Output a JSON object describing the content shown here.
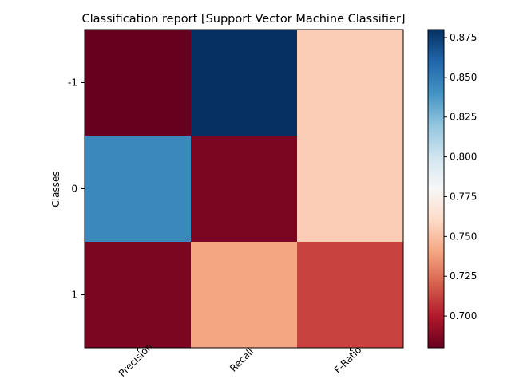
{
  "chart_data": {
    "type": "heatmap",
    "title": "Classification report  [Support Vector Machine Classifier]",
    "xlabel": "",
    "ylabel": "Classes",
    "x_categories": [
      "Precision",
      "Recall",
      "F-Ratio"
    ],
    "y_categories": [
      "-1",
      "0",
      "1"
    ],
    "values": [
      [
        0.68,
        0.88,
        0.755
      ],
      [
        0.845,
        0.685,
        0.755
      ],
      [
        0.685,
        0.74,
        0.712
      ]
    ],
    "colorbar": {
      "min": 0.68,
      "max": 0.88,
      "colormap": "RdBu",
      "ticks": [
        "0.700",
        "0.725",
        "0.750",
        "0.775",
        "0.800",
        "0.825",
        "0.850",
        "0.875"
      ]
    },
    "grid": false,
    "legend": "none"
  }
}
